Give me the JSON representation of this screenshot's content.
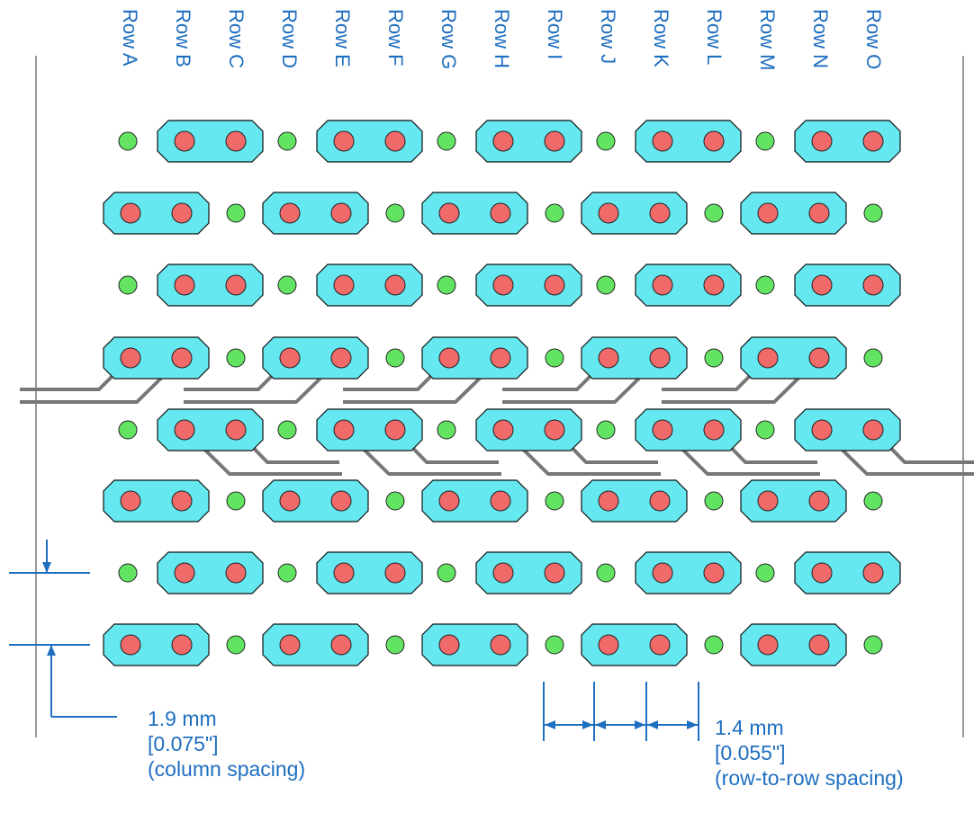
{
  "row_labels": [
    "Row A",
    "Row B",
    "Row C",
    "Row D",
    "Row E",
    "Row F",
    "Row G",
    "Row H",
    "Row I",
    "Row J",
    "Row K",
    "Row L",
    "Row M",
    "Row N",
    "Row O"
  ],
  "column_note": {
    "value_mm": "1.9 mm",
    "value_in": "[0.075\"]",
    "caption": "(column spacing)"
  },
  "row_note": {
    "value_mm": "1.4 mm",
    "value_in": "[0.055\"]",
    "caption": "(row-to-row spacing)"
  },
  "colors": {
    "label_text": "#1f6fc0",
    "pad_fill": "#66e8f0",
    "signal_via": "#f06a6a",
    "ground_via": "#62e462",
    "trace": "#777777",
    "dimension_line": "#1f6fc0",
    "frame_line": "#999999"
  }
}
